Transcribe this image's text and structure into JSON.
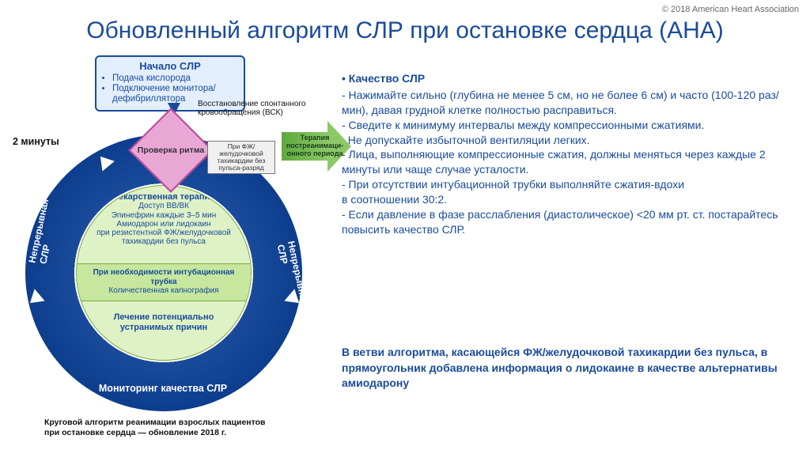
{
  "copyright": "© 2018 American Heart Association",
  "title": "Обновленный алгоритм СЛР при остановке сердца (AHA)",
  "colors": {
    "brand_blue": "#1a4b9a",
    "ring_blue_dark": "#0d3d8d",
    "green_light": "#dff2c6",
    "green_mid": "#c6e79d",
    "green_border": "#7aa83e",
    "arrow_green_a": "#5fa93f",
    "arrow_green_b": "#8cc966",
    "rhombus_fill": "#e9a7d6",
    "rhombus_border": "#b64c97",
    "zap_red": "#d9161c",
    "white": "#ffffff",
    "text_gray": "#666666"
  },
  "diagram": {
    "start": {
      "title": "Начало СЛР",
      "items": [
        "Подача кислорода",
        "Подключение монитора/ дефибриллятора"
      ]
    },
    "two_minutes": "2 минуты",
    "vsk": "Восстановление спонтанного кровообращения (ВСК)",
    "rhombus": "Проверка ритма",
    "smallbox": "При ФЖ/желудочковой тахикардии без пульса-разряд",
    "green_arrow": "Терапия постреанимаци- онного периода",
    "ring_left": "Непрерывная СЛР",
    "ring_right": "Непрерывная СЛР",
    "ring_bottom": "Мониторинг качества СЛР",
    "seg1_title": "Лекарственная терапия",
    "seg1_body": "Доступ ВВ/ВК\nЭпинефрин каждые 3–5 мин\nАмиодарон или лидокаин\nпри резистентной ФЖ/желудочковой\nтахикардии без пульса",
    "seg2_title": "При необходимости интубационная трубка",
    "seg2_body": "Количественная капнография",
    "seg3": "Лечение потенциально устранимых причин",
    "caption": "Круговой алгоритм реанимации взрослых пациентов при остановке сердца — обновление 2018 г."
  },
  "quality": {
    "heading": "Качество СЛР",
    "lines": [
      "- Нажимайте сильно (глубина не менее 5 см, но не более 6 см) и часто (100-120 раз/мин), давая грудной клетке полностью расправиться.",
      "- Сведите к минимуму интервалы между компрессионными сжатиями.",
      ". Не допускайте избыточной вентиляции легких.",
      "- Лица, выполняющие компрессионные сжатия, должны меняться через каждые 2 минуты или чаще случае усталости.",
      "- При отсутствии интубационной трубки выполняйте сжатия-вдохи",
      "в соотношении 30:2.",
      "- Если давление в фазе расслабления (диастолическое) <20 мм рт. ст. постарайтесь повысить качество СЛР."
    ]
  },
  "note": "В ветви алгоритма, касающейся ФЖ/желудочковой тахикардии без пульса, в прямоугольник  добавлена информация о лидокаине  в качестве  альтернативы амиодарону"
}
